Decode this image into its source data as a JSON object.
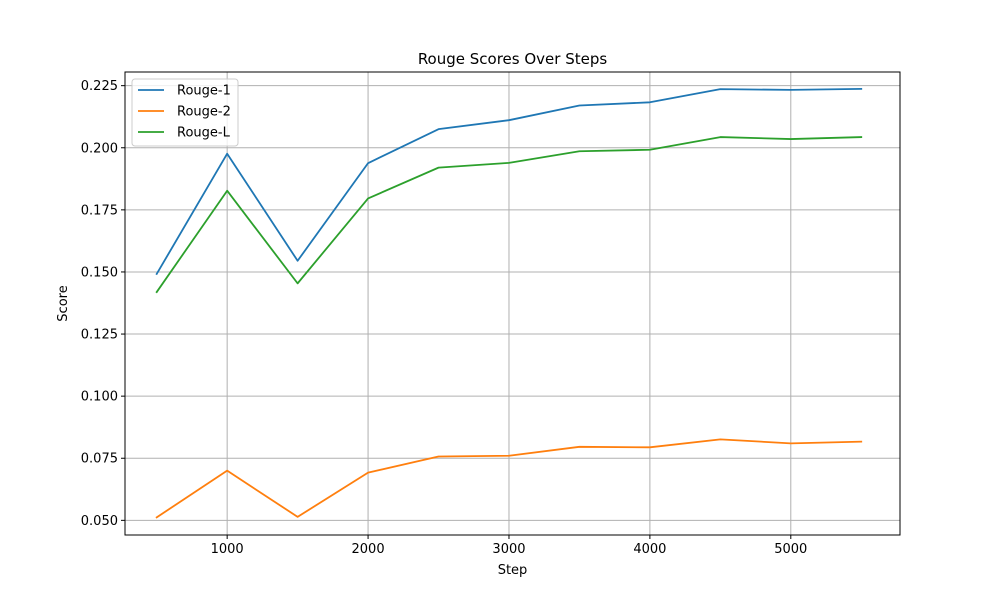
{
  "chart_data": {
    "type": "line",
    "title": "Rouge Scores Over Steps",
    "xlabel": "Step",
    "ylabel": "Score",
    "x": [
      500,
      1000,
      1500,
      2000,
      2500,
      3000,
      3500,
      4000,
      4500,
      5000,
      5500
    ],
    "xlim": [
      275,
      5775
    ],
    "ylim": [
      0.0441,
      0.2305
    ],
    "xticks": [
      1000,
      2000,
      3000,
      4000,
      5000
    ],
    "xtick_labels": [
      "1000",
      "2000",
      "3000",
      "4000",
      "5000"
    ],
    "yticks": [
      0.05,
      0.075,
      0.1,
      0.125,
      0.15,
      0.175,
      0.2,
      0.225
    ],
    "ytick_labels": [
      "0.050",
      "0.075",
      "0.100",
      "0.125",
      "0.150",
      "0.175",
      "0.200",
      "0.225"
    ],
    "grid": true,
    "legend_position": "top-left",
    "series": [
      {
        "name": "Rouge-1",
        "color": "#1f77b4",
        "values": [
          0.1492,
          0.1976,
          0.1545,
          0.1938,
          0.2075,
          0.2111,
          0.217,
          0.2183,
          0.2236,
          0.2233,
          0.2237
        ]
      },
      {
        "name": "Rouge-2",
        "color": "#ff7f0e",
        "values": [
          0.0512,
          0.07,
          0.0514,
          0.0692,
          0.0757,
          0.076,
          0.0796,
          0.0794,
          0.0826,
          0.081,
          0.0817
        ]
      },
      {
        "name": "Rouge-L",
        "color": "#2ca02c",
        "values": [
          0.1419,
          0.1827,
          0.1454,
          0.1796,
          0.192,
          0.1939,
          0.1986,
          0.1992,
          0.2043,
          0.2035,
          0.2043
        ]
      }
    ]
  }
}
